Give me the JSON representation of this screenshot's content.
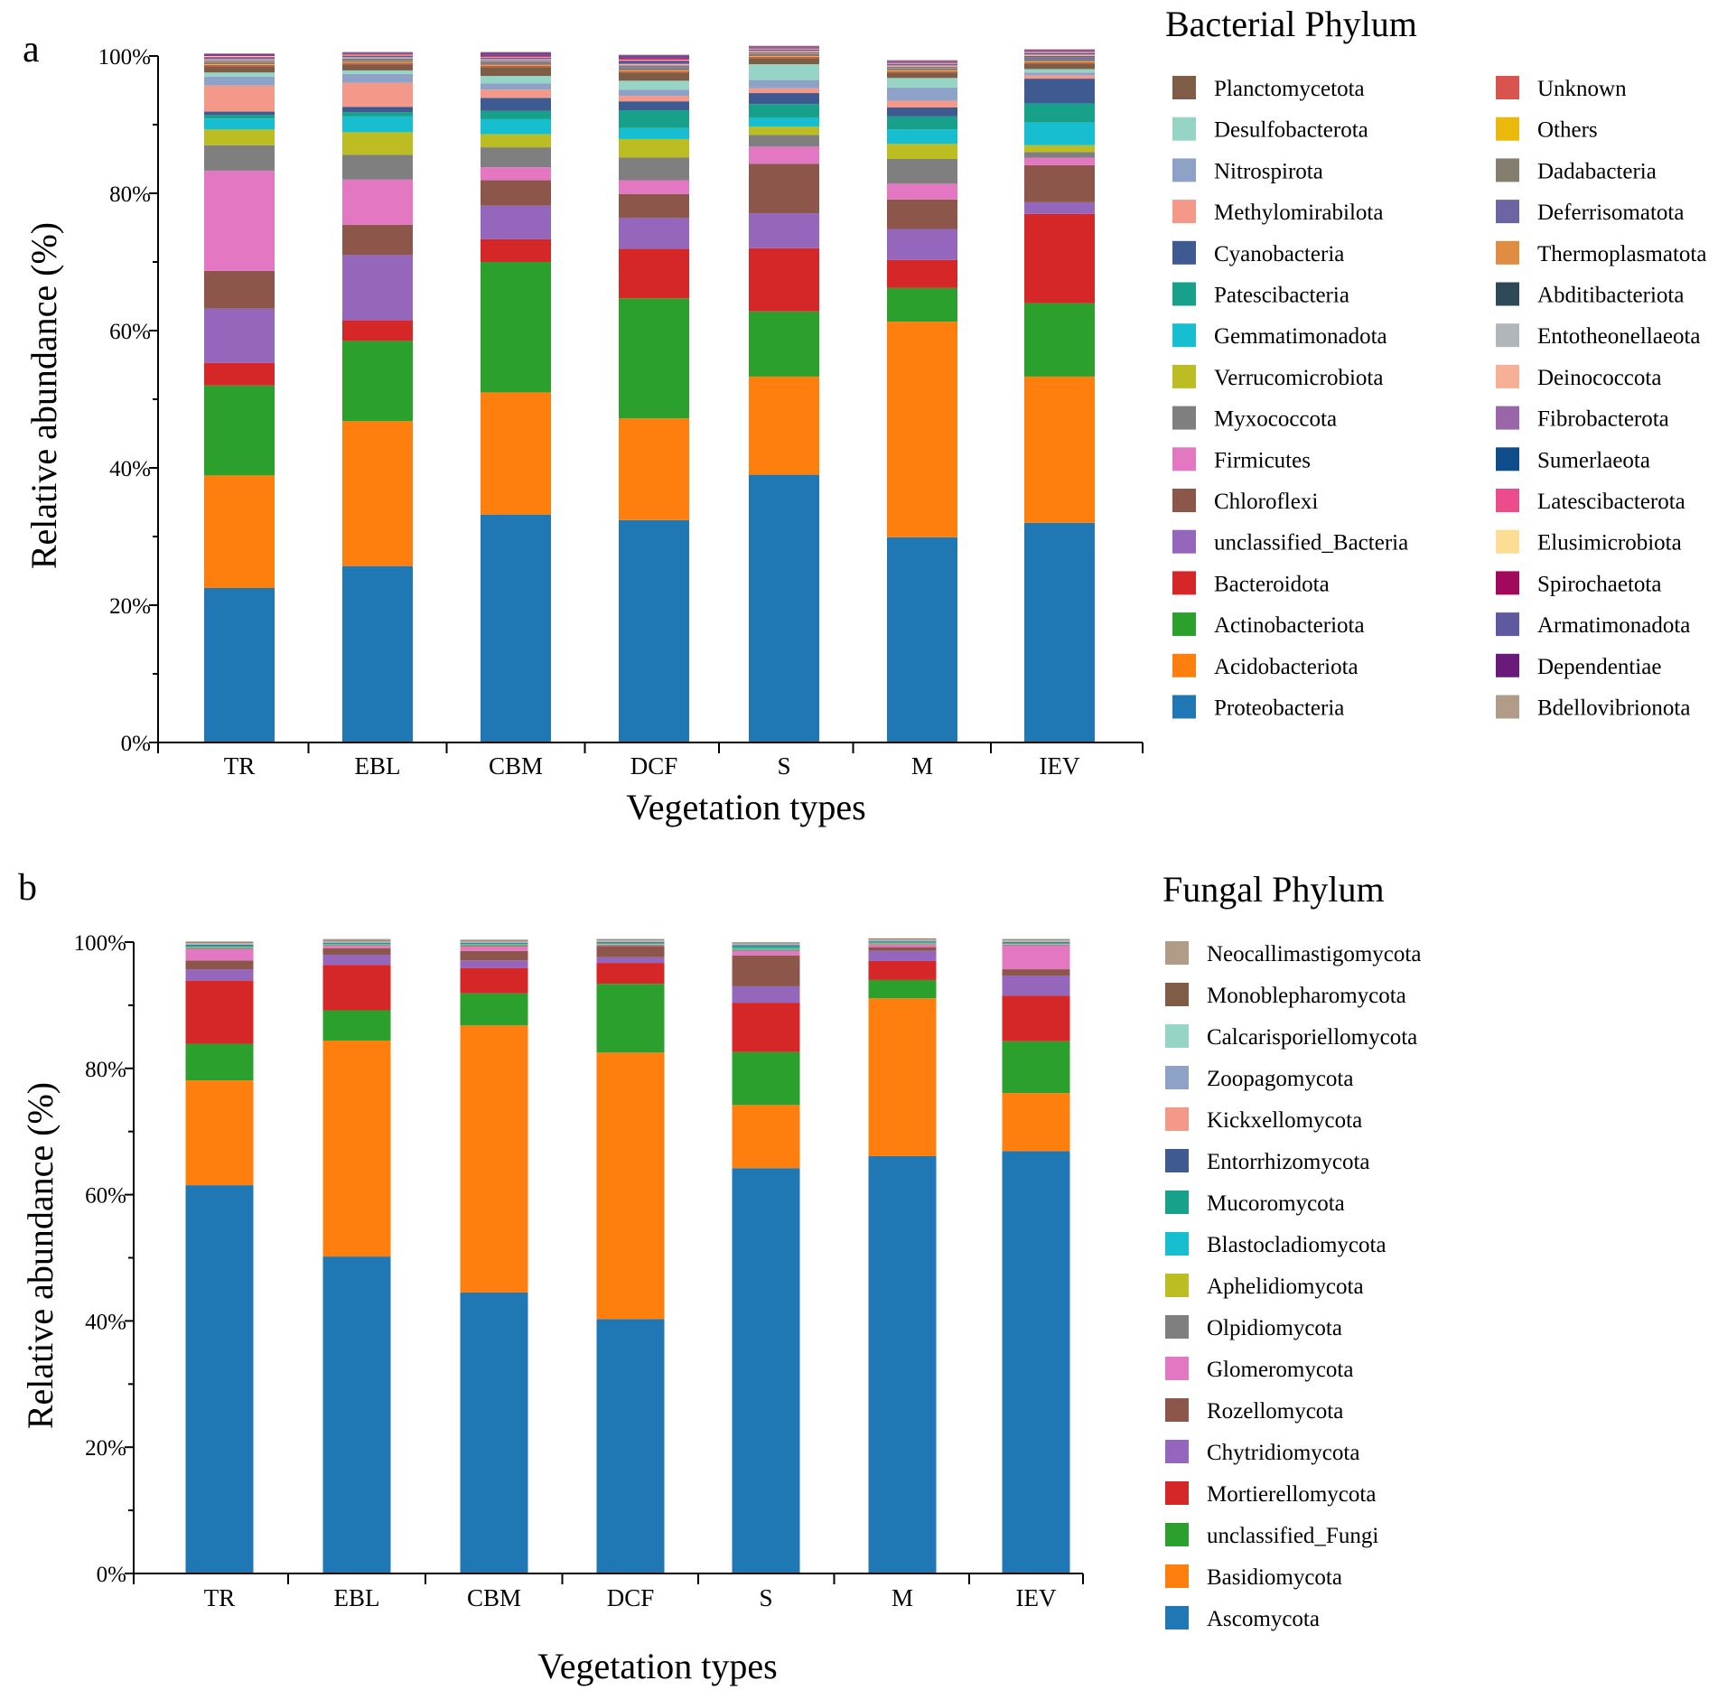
{
  "chart_data": [
    {
      "type": "bar",
      "stacked": true,
      "panel_label": "a",
      "title": "Bacterial Phylum",
      "xlabel": "Vegetation types",
      "ylabel": "Relative abundance (%)",
      "ylim": [
        0,
        100
      ],
      "ytick_labels": [
        "0%",
        "20%",
        "40%",
        "60%",
        "80%",
        "100%"
      ],
      "categories": [
        "TR",
        "EBL",
        "CBM",
        "DCF",
        "S",
        "M",
        "IEV"
      ],
      "legend_position": "right",
      "series": [
        {
          "name": "Proteobacteria",
          "color": "#1f77b4",
          "values": [
            22.5,
            25.7,
            33.2,
            32.4,
            39.0,
            29.9,
            32.0
          ]
        },
        {
          "name": "Acidobacteriota",
          "color": "#ff7f0e",
          "values": [
            16.4,
            21.1,
            17.8,
            14.8,
            14.3,
            31.4,
            21.3
          ]
        },
        {
          "name": "Actinobacteriota",
          "color": "#2ca02c",
          "values": [
            13.1,
            11.7,
            19.0,
            17.5,
            9.5,
            4.9,
            10.7
          ]
        },
        {
          "name": "Bacteroidota",
          "color": "#d62728",
          "values": [
            3.3,
            3.0,
            3.3,
            7.2,
            9.2,
            4.1,
            13.0
          ]
        },
        {
          "name": "unclassified_Bacteria",
          "color": "#9467bd",
          "values": [
            7.9,
            9.5,
            4.9,
            4.5,
            5.1,
            4.5,
            1.7
          ]
        },
        {
          "name": "Chloroflexi",
          "color": "#8c564b",
          "values": [
            5.5,
            4.4,
            3.7,
            3.5,
            7.2,
            4.3,
            5.4
          ]
        },
        {
          "name": "Firmicutes",
          "color": "#e377c2",
          "values": [
            14.6,
            6.6,
            1.9,
            2.0,
            2.5,
            2.3,
            1.1
          ]
        },
        {
          "name": "Myxococcota",
          "color": "#7f7f7f",
          "values": [
            3.7,
            3.6,
            2.9,
            3.3,
            1.7,
            3.6,
            0.8
          ]
        },
        {
          "name": "Verrucomicrobiota",
          "color": "#bcbd22",
          "values": [
            2.3,
            3.3,
            1.9,
            2.7,
            1.2,
            2.2,
            1.0
          ]
        },
        {
          "name": "Gemmatimonadota",
          "color": "#17becf",
          "values": [
            1.6,
            2.3,
            2.2,
            1.6,
            1.3,
            2.1,
            3.3
          ]
        },
        {
          "name": "Patescibacteria",
          "color": "#17a08a",
          "values": [
            0.5,
            0.6,
            1.2,
            2.6,
            2.0,
            1.9,
            2.8
          ]
        },
        {
          "name": "Cyanobacteria",
          "color": "#3f5a91",
          "values": [
            0.5,
            0.8,
            1.9,
            1.3,
            1.6,
            1.3,
            3.6
          ]
        },
        {
          "name": "Methylomirabilota",
          "color": "#f4998a",
          "values": [
            3.8,
            3.5,
            1.2,
            0.8,
            0.7,
            1.0,
            0.5
          ]
        },
        {
          "name": "Nitrospirota",
          "color": "#8ea2c7",
          "values": [
            1.3,
            1.3,
            0.9,
            0.9,
            1.2,
            1.9,
            0.4
          ]
        },
        {
          "name": "Desulfobacterota",
          "color": "#96d4c6",
          "values": [
            0.6,
            0.5,
            1.1,
            1.3,
            2.3,
            1.4,
            0.5
          ]
        },
        {
          "name": "Planctomycetota",
          "color": "#7f5c45",
          "values": [
            0.9,
            0.9,
            1.3,
            1.2,
            0.9,
            0.8,
            0.8
          ]
        },
        {
          "name": "Unknown",
          "color": "#d9534f",
          "values": [
            0.2,
            0.2,
            0.2,
            0.2,
            0.2,
            0.2,
            0.2
          ]
        },
        {
          "name": "Others",
          "color": "#eab90c",
          "values": [
            0.1,
            0.1,
            0.1,
            0.1,
            0.1,
            0.1,
            0.1
          ]
        },
        {
          "name": "Dadabacteria",
          "color": "#857d6d",
          "values": [
            0.2,
            0.2,
            0.2,
            0.3,
            0.2,
            0.2,
            0.3
          ]
        },
        {
          "name": "Deferrisomatota",
          "color": "#6b66a3",
          "values": [
            0.1,
            0.1,
            0.2,
            0.2,
            0.1,
            0.1,
            0.3
          ]
        },
        {
          "name": "Thermoplasmatota",
          "color": "#e08c43",
          "values": [
            0.1,
            0.1,
            0.1,
            0.1,
            0.1,
            0.1,
            0.1
          ]
        },
        {
          "name": "Abditibacteriota",
          "color": "#2f4a57",
          "values": [
            0.1,
            0.1,
            0.1,
            0.1,
            0.1,
            0.1,
            0.1
          ]
        },
        {
          "name": "Entotheonellaeota",
          "color": "#b0b6ba",
          "values": [
            0.1,
            0.1,
            0.1,
            0.1,
            0.1,
            0.1,
            0.1
          ]
        },
        {
          "name": "Deinococcota",
          "color": "#f7b096",
          "values": [
            0.1,
            0.1,
            0.1,
            0.1,
            0.1,
            0.1,
            0.1
          ]
        },
        {
          "name": "Fibrobacterota",
          "color": "#9a66a8",
          "values": [
            0.1,
            0.1,
            0.1,
            0.2,
            0.1,
            0.1,
            0.1
          ]
        },
        {
          "name": "Sumerlaeota",
          "color": "#0e4c8c",
          "values": [
            0.1,
            0.1,
            0.1,
            0.2,
            0.1,
            0.1,
            0.1
          ]
        },
        {
          "name": "Latescibacterota",
          "color": "#ec4c8c",
          "values": [
            0.2,
            0.1,
            0.1,
            0.2,
            0.1,
            0.1,
            0.1
          ]
        },
        {
          "name": "Elusimicrobiota",
          "color": "#fddc94",
          "values": [
            0.1,
            0.1,
            0.1,
            0.1,
            0.1,
            0.1,
            0.1
          ]
        },
        {
          "name": "Spirochaetota",
          "color": "#a2095d",
          "values": [
            0.1,
            0.1,
            0.2,
            0.2,
            0.1,
            0.1,
            0.1
          ]
        },
        {
          "name": "Armatimonadota",
          "color": "#5f5aa0",
          "values": [
            0.1,
            0.1,
            0.2,
            0.2,
            0.1,
            0.1,
            0.1
          ]
        },
        {
          "name": "Dependentiae",
          "color": "#6a1a7a",
          "values": [
            0.1,
            0.1,
            0.2,
            0.2,
            0.1,
            0.1,
            0.1
          ]
        },
        {
          "name": "Bdellovibrionota",
          "color": "#b09c87",
          "values": [
            0.1,
            0.1,
            0.1,
            0.1,
            0.1,
            0.1,
            0.1
          ]
        }
      ]
    },
    {
      "type": "bar",
      "stacked": true,
      "panel_label": "b",
      "title": "Fungal Phylum",
      "xlabel": "Vegetation types",
      "ylabel": "Relative abundance (%)",
      "ylim": [
        0,
        100
      ],
      "ytick_labels": [
        "0%",
        "20%",
        "40%",
        "60%",
        "80%",
        "100%"
      ],
      "categories": [
        "TR",
        "EBL",
        "CBM",
        "DCF",
        "S",
        "M",
        "IEV"
      ],
      "legend_position": "right",
      "series": [
        {
          "name": "Ascomycota",
          "color": "#1f77b4",
          "values": [
            61.5,
            50.2,
            44.5,
            40.3,
            64.2,
            66.1,
            66.9
          ]
        },
        {
          "name": "Basidiomycota",
          "color": "#ff7f0e",
          "values": [
            16.6,
            34.2,
            42.3,
            42.2,
            10.0,
            25.0,
            9.2
          ]
        },
        {
          "name": "unclassified_Fungi",
          "color": "#2ca02c",
          "values": [
            5.8,
            4.8,
            5.1,
            10.9,
            8.4,
            2.9,
            8.2
          ]
        },
        {
          "name": "Mortierellomycota",
          "color": "#d62728",
          "values": [
            10.0,
            7.2,
            4.0,
            3.3,
            7.8,
            3.0,
            7.2
          ]
        },
        {
          "name": "Chytridiomycota",
          "color": "#9467bd",
          "values": [
            1.8,
            1.6,
            1.2,
            0.9,
            2.6,
            1.6,
            3.2
          ]
        },
        {
          "name": "Rozellomycota",
          "color": "#8c564b",
          "values": [
            1.4,
            1.0,
            1.5,
            1.8,
            4.9,
            0.6,
            1.0
          ]
        },
        {
          "name": "Glomeromycota",
          "color": "#e377c2",
          "values": [
            1.8,
            0.4,
            0.7,
            0.1,
            0.7,
            0.4,
            3.8
          ]
        },
        {
          "name": "Olpidiomycota",
          "color": "#7f7f7f",
          "values": [
            0.2,
            0.1,
            0.2,
            0.1,
            0.2,
            0.1,
            0.1
          ]
        },
        {
          "name": "Aphelidiomycota",
          "color": "#bcbd22",
          "values": [
            0.1,
            0.1,
            0.1,
            0.1,
            0.1,
            0.1,
            0.1
          ]
        },
        {
          "name": "Blastocladiomycota",
          "color": "#17becf",
          "values": [
            0.1,
            0.1,
            0.1,
            0.1,
            0.2,
            0.1,
            0.1
          ]
        },
        {
          "name": "Mucoromycota",
          "color": "#17a08a",
          "values": [
            0.2,
            0.1,
            0.1,
            0.1,
            0.3,
            0.1,
            0.1
          ]
        },
        {
          "name": "Entorrhizomycota",
          "color": "#3f5a91",
          "values": [
            0.1,
            0.1,
            0.1,
            0.1,
            0.1,
            0.1,
            0.1
          ]
        },
        {
          "name": "Kickxellomycota",
          "color": "#f4998a",
          "values": [
            0.1,
            0.1,
            0.1,
            0.1,
            0.1,
            0.1,
            0.1
          ]
        },
        {
          "name": "Zoopagomycota",
          "color": "#8ea2c7",
          "values": [
            0.1,
            0.1,
            0.1,
            0.1,
            0.1,
            0.1,
            0.1
          ]
        },
        {
          "name": "Calcarisporiellomycota",
          "color": "#96d4c6",
          "values": [
            0.1,
            0.1,
            0.1,
            0.1,
            0.1,
            0.1,
            0.1
          ]
        },
        {
          "name": "Monoblepharomycota",
          "color": "#7f5c45",
          "values": [
            0.1,
            0.1,
            0.1,
            0.1,
            0.1,
            0.1,
            0.1
          ]
        },
        {
          "name": "Neocallimastigomycota",
          "color": "#b09c87",
          "values": [
            0.1,
            0.2,
            0.1,
            0.1,
            0.1,
            0.1,
            0.1
          ]
        }
      ]
    }
  ]
}
